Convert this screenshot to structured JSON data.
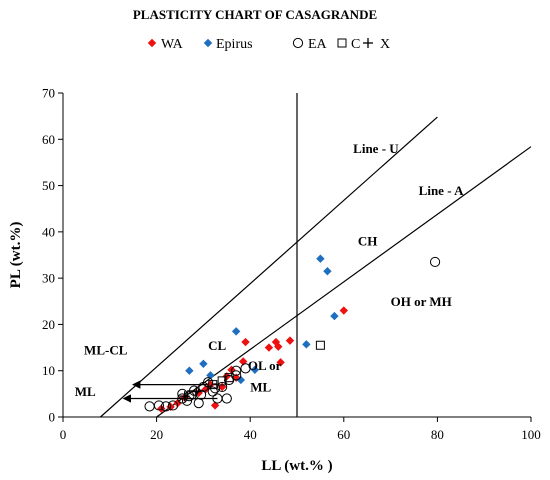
{
  "chart_data": {
    "type": "scatter",
    "title": "PLASTICITY CHART OF CASAGRANDE",
    "xlabel": "LL (wt.% )",
    "ylabel": "PL  (wt.%)",
    "xlim": [
      0,
      100
    ],
    "ylim": [
      0,
      70
    ],
    "xticks": [
      "0",
      "20",
      "40",
      "60",
      "80",
      "100"
    ],
    "yticks": [
      "0",
      "10",
      "20",
      "30",
      "40",
      "50",
      "60",
      "70"
    ],
    "grid": false,
    "legend": {
      "placement": "top",
      "entries": [
        {
          "label": "WA",
          "marker": "diamond",
          "color": "#ee1111"
        },
        {
          "label": "Epirus",
          "marker": "diamond",
          "color": "#1f6fc0"
        },
        {
          "label": "EA",
          "marker": "circle",
          "color": "#000000"
        },
        {
          "label": "C",
          "marker": "square",
          "color": "#000000"
        },
        {
          "label": "X",
          "marker": "plus",
          "color": "#000000"
        }
      ]
    },
    "lines": [
      {
        "name": "Line - U",
        "points": [
          [
            8,
            0
          ],
          [
            80,
            64.8
          ]
        ]
      },
      {
        "name": "Line - A",
        "points": [
          [
            20,
            0
          ],
          [
            100,
            58.4
          ]
        ]
      },
      {
        "name": "",
        "points": [
          [
            50,
            0
          ],
          [
            50,
            70
          ]
        ]
      }
    ],
    "annotations": [
      {
        "text": "Line - U",
        "x": 62,
        "y": 57
      },
      {
        "text": "Line - A",
        "x": 76,
        "y": 48
      },
      {
        "text": "CH",
        "x": 63,
        "y": 37
      },
      {
        "text": "CL",
        "x": 31,
        "y": 14.5
      },
      {
        "text": "OH or MH",
        "x": 70,
        "y": 24
      },
      {
        "text": "ML-CL",
        "x": 4.5,
        "y": 13.5
      },
      {
        "text": "ML",
        "x": 2.5,
        "y": 4.5
      },
      {
        "text": "OL or",
        "x": 39.5,
        "y": 10.2
      },
      {
        "text": "ML",
        "x": 40,
        "y": 5.5
      }
    ],
    "series": [
      {
        "name": "WA",
        "marker": "diamond",
        "color": "#ee1111",
        "points": [
          [
            21,
            1.8
          ],
          [
            23,
            2.2
          ],
          [
            24.5,
            3
          ],
          [
            26,
            4.2
          ],
          [
            29,
            5.2
          ],
          [
            30.5,
            6
          ],
          [
            31.5,
            7
          ],
          [
            32.5,
            2.5
          ],
          [
            34,
            6.5
          ],
          [
            35,
            8.8
          ],
          [
            36,
            10.2
          ],
          [
            37,
            8.5
          ],
          [
            38.5,
            12
          ],
          [
            39,
            16.2
          ],
          [
            44,
            15
          ],
          [
            45.5,
            16.2
          ],
          [
            46,
            15.2
          ],
          [
            46.5,
            11.8
          ],
          [
            48.5,
            16.5
          ],
          [
            60,
            23
          ]
        ]
      },
      {
        "name": "Epirus",
        "marker": "diamond",
        "color": "#1f6fc0",
        "points": [
          [
            27,
            10
          ],
          [
            30,
            11.5
          ],
          [
            31.5,
            9
          ],
          [
            37,
            18.5
          ],
          [
            38,
            8
          ],
          [
            41,
            10.2
          ],
          [
            52,
            15.7
          ],
          [
            55,
            34.2
          ],
          [
            56.5,
            31.5
          ],
          [
            58,
            21.8
          ]
        ]
      },
      {
        "name": "EA",
        "marker": "circle",
        "color": "#000000",
        "points": [
          [
            18.5,
            2.3
          ],
          [
            20.5,
            2.5
          ],
          [
            22,
            2.3
          ],
          [
            23.5,
            2.5
          ],
          [
            25.5,
            4
          ],
          [
            25.5,
            5
          ],
          [
            26.5,
            3.5
          ],
          [
            27,
            4.5
          ],
          [
            28,
            5.7
          ],
          [
            29,
            3
          ],
          [
            29.5,
            4.8
          ],
          [
            30,
            6.5
          ],
          [
            31,
            7.5
          ],
          [
            32,
            5.5
          ],
          [
            32.5,
            6.2
          ],
          [
            33,
            4
          ],
          [
            34,
            6.5
          ],
          [
            35,
            4
          ],
          [
            35.5,
            8
          ],
          [
            37,
            9
          ],
          [
            37,
            10
          ],
          [
            39,
            10.5
          ],
          [
            79.5,
            33.5
          ]
        ]
      },
      {
        "name": "C",
        "marker": "square",
        "color": "#000000",
        "points": [
          [
            27.5,
            4.8
          ],
          [
            32,
            7
          ],
          [
            34,
            7.8
          ],
          [
            35.5,
            8.5
          ],
          [
            55,
            15.5
          ]
        ]
      },
      {
        "name": "X",
        "marker": "plus",
        "color": "#000000",
        "points": [
          [
            26,
            4.5
          ],
          [
            28.5,
            5.5
          ]
        ]
      }
    ],
    "arrows": [
      {
        "name": "ML-CL",
        "from": [
          15,
          7
        ],
        "to": [
          33,
          7
        ]
      },
      {
        "name": "ML",
        "from": [
          13,
          4
        ],
        "to": [
          33,
          4
        ]
      }
    ]
  }
}
